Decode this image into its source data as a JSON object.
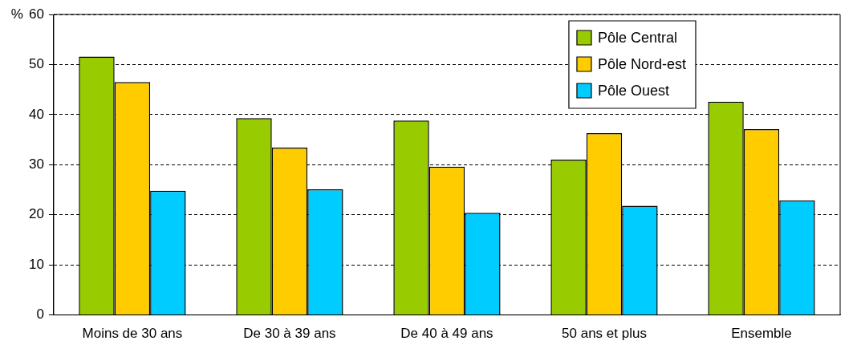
{
  "chart_data": {
    "type": "bar",
    "ylabel": "%",
    "categories": [
      "Moins de 30 ans",
      "De 30 à 39 ans",
      "De 40 à 49 ans",
      "50 ans et plus",
      "Ensemble"
    ],
    "series": [
      {
        "name": "Pôle Central",
        "color": "#99cc00",
        "values": [
          51.6,
          39.3,
          38.8,
          31.0,
          42.6
        ]
      },
      {
        "name": "Pôle Nord-est",
        "color": "#ffcc00",
        "values": [
          46.5,
          33.4,
          29.6,
          36.3,
          37.1
        ]
      },
      {
        "name": "Pôle Ouest",
        "color": "#00ccff",
        "values": [
          24.8,
          25.1,
          20.4,
          21.8,
          22.9
        ]
      }
    ],
    "ylim": [
      0,
      60
    ],
    "yticks": [
      0,
      10,
      20,
      30,
      40,
      50,
      60
    ],
    "grid": "y",
    "legend": "top right"
  }
}
